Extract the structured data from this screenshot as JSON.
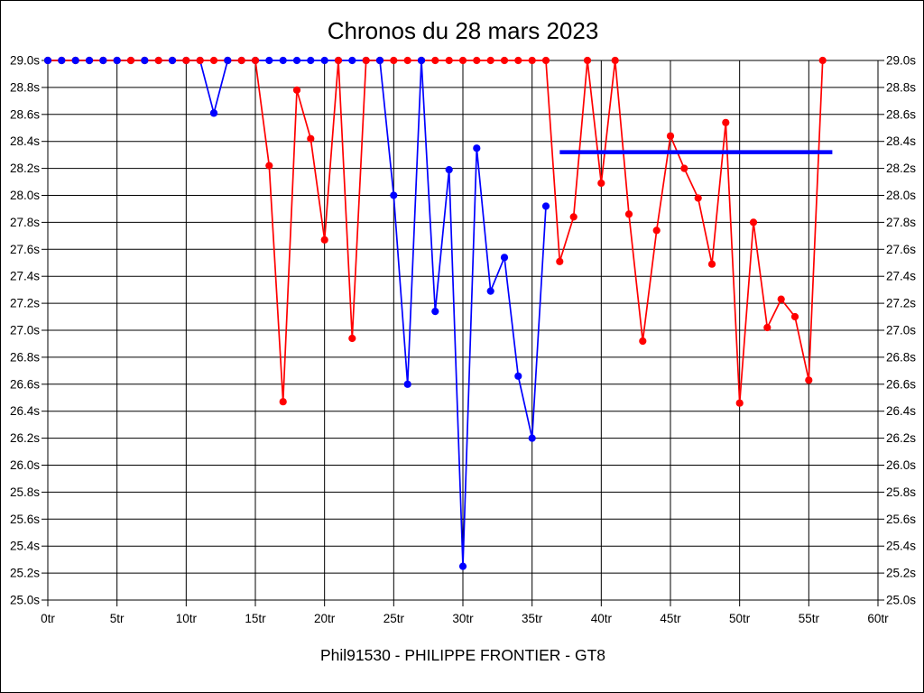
{
  "title": "Chronos du 28 mars 2023",
  "footer": "Phil91530 - PHILIPPE FRONTIER - GT8",
  "colors": {
    "red_series": "#ff0000",
    "blue_series": "#0000ff",
    "grid": "#000000",
    "background": "#ffffff"
  },
  "chart_data": {
    "type": "line",
    "title": "Chronos du 28 mars 2023",
    "xlabel": "",
    "ylabel": "",
    "grid": true,
    "x_axis": {
      "min": 0,
      "max": 60,
      "tick_step": 5,
      "unit": "tr",
      "tick_labels": [
        "0tr",
        "5tr",
        "10tr",
        "15tr",
        "20tr",
        "25tr",
        "30tr",
        "35tr",
        "40tr",
        "45tr",
        "50tr",
        "55tr",
        "60tr"
      ]
    },
    "y_axis": {
      "min": 25.0,
      "max": 29.0,
      "tick_step": 0.2,
      "unit": "s",
      "tick_labels": [
        "29.0s",
        "28.8s",
        "28.6s",
        "28.4s",
        "28.2s",
        "28.0s",
        "27.8s",
        "27.6s",
        "27.4s",
        "27.2s",
        "27.0s",
        "26.8s",
        "26.6s",
        "26.4s",
        "26.2s",
        "26.0s",
        "25.8s",
        "25.6s",
        "25.4s",
        "25.2s",
        "25.0s"
      ],
      "labels_on_both_sides": true
    },
    "series": [
      {
        "name": "red-series",
        "color": "#ff0000",
        "points": [
          [
            0,
            29
          ],
          [
            1,
            29
          ],
          [
            2,
            29
          ],
          [
            3,
            29
          ],
          [
            4,
            29
          ],
          [
            5,
            29
          ],
          [
            6,
            29
          ],
          [
            7,
            29
          ],
          [
            8,
            29
          ],
          [
            9,
            29
          ],
          [
            10,
            29
          ],
          [
            11,
            29
          ],
          [
            12,
            29
          ],
          [
            13,
            29
          ],
          [
            14,
            29
          ],
          [
            15,
            29
          ],
          [
            16,
            28.22
          ],
          [
            17,
            26.47
          ],
          [
            18,
            28.78
          ],
          [
            19,
            28.42
          ],
          [
            20,
            27.67
          ],
          [
            21,
            29
          ],
          [
            22,
            26.94
          ],
          [
            23,
            29
          ],
          [
            24,
            29
          ],
          [
            25,
            29
          ],
          [
            26,
            29
          ],
          [
            27,
            29
          ],
          [
            28,
            29
          ],
          [
            29,
            29
          ],
          [
            30,
            29
          ],
          [
            31,
            29
          ],
          [
            32,
            29
          ],
          [
            33,
            29
          ],
          [
            34,
            29
          ],
          [
            35,
            29
          ],
          [
            36,
            29
          ],
          [
            37,
            27.51
          ],
          [
            38,
            27.84
          ],
          [
            39,
            29
          ],
          [
            40,
            28.09
          ],
          [
            41,
            29
          ],
          [
            42,
            27.86
          ],
          [
            43,
            26.92
          ],
          [
            44,
            27.74
          ],
          [
            45,
            28.44
          ],
          [
            46,
            28.2
          ],
          [
            47,
            27.98
          ],
          [
            48,
            27.49
          ],
          [
            49,
            28.54
          ],
          [
            50,
            26.46
          ],
          [
            51,
            27.8
          ],
          [
            52,
            27.02
          ],
          [
            53,
            27.23
          ],
          [
            54,
            27.1
          ],
          [
            55,
            26.63
          ],
          [
            56,
            29
          ]
        ]
      },
      {
        "name": "blue-series",
        "color": "#0000ff",
        "points": [
          [
            0,
            29
          ],
          [
            1,
            29
          ],
          [
            2,
            29
          ],
          [
            3,
            29
          ],
          [
            4,
            29
          ],
          [
            5,
            29
          ],
          [
            6,
            29
          ],
          [
            7,
            29
          ],
          [
            8,
            29
          ],
          [
            9,
            29
          ],
          [
            10,
            29
          ],
          [
            11,
            29
          ],
          [
            12,
            28.61
          ],
          [
            13,
            29
          ],
          [
            14,
            29
          ],
          [
            15,
            29
          ],
          [
            16,
            29
          ],
          [
            17,
            29
          ],
          [
            18,
            29
          ],
          [
            19,
            29
          ],
          [
            20,
            29
          ],
          [
            21,
            29
          ],
          [
            22,
            29
          ],
          [
            23,
            29
          ],
          [
            24,
            29
          ],
          [
            25,
            28.0
          ],
          [
            26,
            26.6
          ],
          [
            27,
            29
          ],
          [
            28,
            27.14
          ],
          [
            29,
            28.19
          ],
          [
            30,
            25.25
          ],
          [
            31,
            28.35
          ],
          [
            32,
            27.29
          ],
          [
            33,
            27.54
          ],
          [
            34,
            26.66
          ],
          [
            35,
            26.2
          ],
          [
            36,
            27.92
          ]
        ],
        "markers_drawn_on_top_at": [
          0,
          1,
          2,
          3,
          4,
          5,
          7,
          9,
          12,
          13,
          24,
          27
        ]
      }
    ],
    "reference_line": {
      "name": "blue-average-line",
      "color": "#0000ff",
      "value": 28.32,
      "x_from": 37,
      "x_to": 56.7
    },
    "legend": "none"
  }
}
